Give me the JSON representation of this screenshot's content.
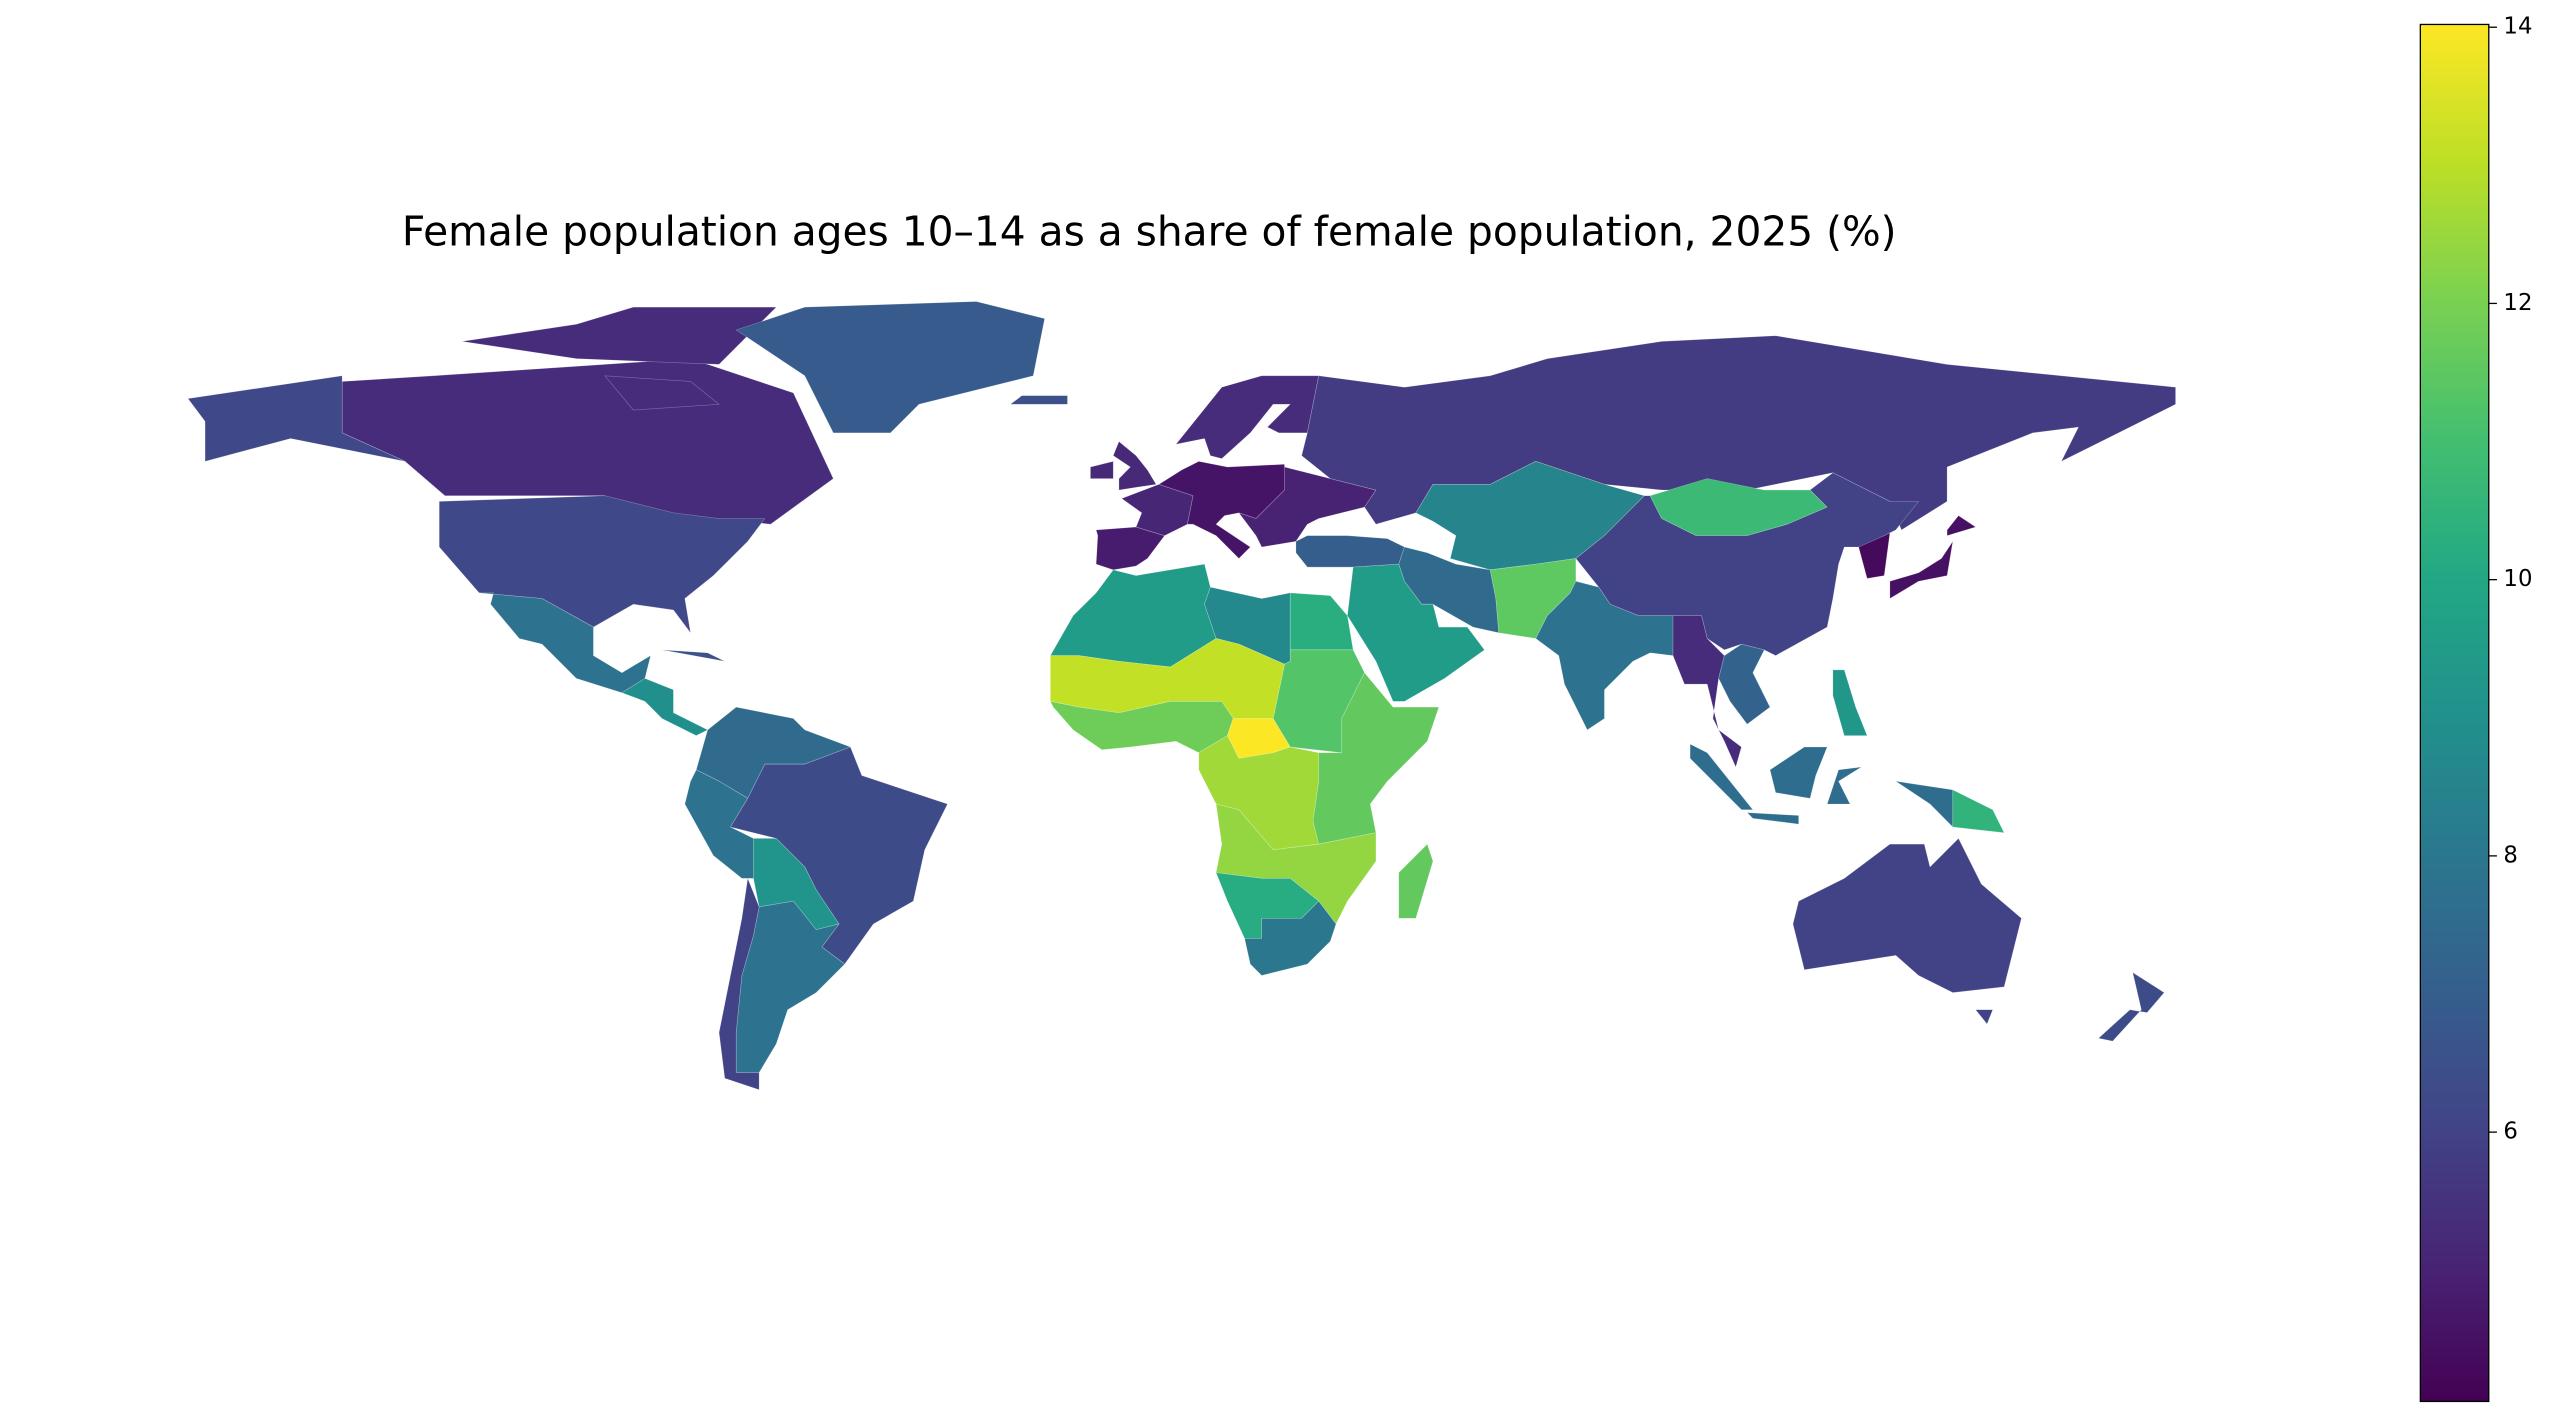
{
  "chart_data": {
    "type": "choropleth",
    "title": "Female population ages 10–14 as a share of female population, 2025 (%)",
    "colormap": "viridis",
    "values": [
      5.3,
      5.3,
      6.2,
      6.2,
      7.8,
      9.0,
      6.9,
      7.5,
      7.8,
      6.3,
      9.2,
      7.8,
      6.0,
      4.8,
      5.1,
      5.2,
      4.6,
      5.0,
      5.3,
      5.8,
      8.5,
      10.8,
      6.0,
      4.3,
      4.5,
      7.0,
      7.5,
      11.5,
      7.8,
      9.5,
      5.3,
      7.2,
      7.6,
      10.5,
      9.3,
      6.0,
      6.3,
      9.5,
      8.7,
      10.3,
      11.3,
      13.1,
      11.8,
      14.0,
      12.6,
      11.6,
      12.4,
      10.2,
      8.0,
      11.6,
      6.5,
      6.5
    ],
    "clim": [
      4.05,
      14.02
    ],
    "cticks": [
      6,
      8,
      10,
      12,
      14
    ]
  }
}
